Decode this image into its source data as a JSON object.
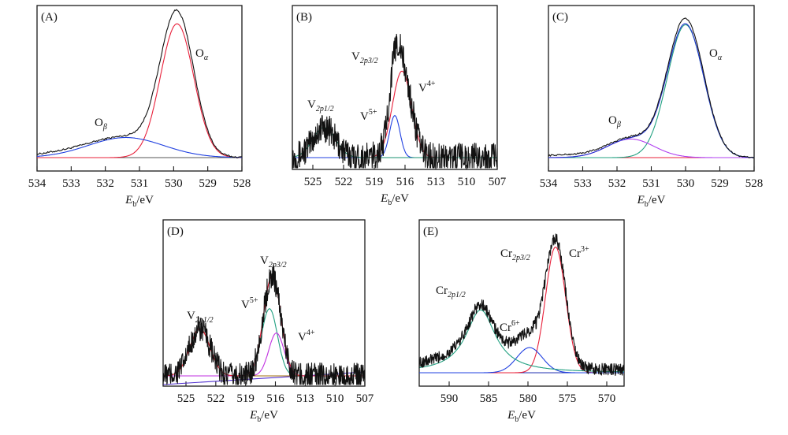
{
  "chart_data": [
    {
      "id": "A",
      "type": "line",
      "panel_label": "(A)",
      "xlabel_main": "E",
      "xlabel_sub": "b",
      "xlabel_unit": "/eV",
      "xlim": [
        534,
        528
      ],
      "x_reversed": true,
      "xticks": [
        534,
        533,
        532,
        531,
        530,
        529,
        528
      ],
      "ylabel": "",
      "yaxis_ticks": false,
      "annotations": [
        {
          "text": "O",
          "sub": "α",
          "near_x": 529.4,
          "label_for": "O-alpha component"
        },
        {
          "text": "O",
          "sub": "β",
          "near_x": 531.9,
          "label_for": "O-beta component"
        }
      ],
      "series": [
        {
          "name": "Measured spectrum",
          "color": "#111111",
          "kind": "envelope",
          "noise": "low"
        },
        {
          "name": "Oα fit",
          "color": "#e8203a",
          "kind": "gaussian",
          "center": 529.9,
          "fwhm": 1.15,
          "rel_height": 1.0
        },
        {
          "name": "Oβ fit",
          "color": "#2040e0",
          "kind": "gaussian",
          "center": 531.4,
          "fwhm": 2.6,
          "rel_height": 0.15
        },
        {
          "name": "Baseline",
          "color": "#555555",
          "kind": "baseline"
        }
      ]
    },
    {
      "id": "B",
      "type": "line",
      "panel_label": "(B)",
      "xlabel_main": "E",
      "xlabel_sub": "b",
      "xlabel_unit": "/eV",
      "xlim": [
        527,
        507
      ],
      "x_reversed": true,
      "xticks": [
        525,
        522,
        519,
        516,
        513,
        510,
        507
      ],
      "ylabel": "",
      "yaxis_ticks": false,
      "annotations": [
        {
          "text": "V",
          "sub": "2p3/2",
          "near_x": 517.5,
          "label_for": "V 2p3/2 peak"
        },
        {
          "text": "V",
          "sup": "4+",
          "near_x": 514.5,
          "label_for": "V4+ component"
        },
        {
          "text": "V",
          "sup": "5+",
          "near_x": 518.5,
          "label_for": "V5+ component"
        },
        {
          "text": "V",
          "sub": "2p1/2",
          "near_x": 524.0,
          "label_for": "V 2p1/2 peak"
        }
      ],
      "series": [
        {
          "name": "Measured spectrum",
          "color": "#111111",
          "kind": "envelope",
          "noise": "high"
        },
        {
          "name": "V4+ fit",
          "color": "#e8203a",
          "kind": "gaussian",
          "center": 516.3,
          "fwhm": 2.2,
          "rel_height": 0.72
        },
        {
          "name": "V5+ fit",
          "color": "#2040e0",
          "kind": "gaussian",
          "center": 517.0,
          "fwhm": 1.2,
          "rel_height": 0.35
        },
        {
          "name": "V 2p1/2 fit",
          "color": "#1a9070",
          "kind": "gaussian",
          "center": 523.9,
          "fwhm": 2.6,
          "rel_height": 0.25
        },
        {
          "name": "Baseline",
          "color": "#3030c0",
          "kind": "baseline"
        }
      ]
    },
    {
      "id": "C",
      "type": "line",
      "panel_label": "(C)",
      "xlabel_main": "E",
      "xlabel_sub": "b",
      "xlabel_unit": "/eV",
      "xlim": [
        534,
        528
      ],
      "x_reversed": true,
      "xticks": [
        534,
        533,
        532,
        531,
        530,
        529,
        528
      ],
      "ylabel": "",
      "yaxis_ticks": false,
      "annotations": [
        {
          "text": "O",
          "sub": "α",
          "near_x": 529.3,
          "label_for": "O-alpha component"
        },
        {
          "text": "O",
          "sub": "β",
          "near_x": 532.0,
          "label_for": "O-beta component"
        }
      ],
      "series": [
        {
          "name": "Measured spectrum",
          "color": "#111111",
          "kind": "envelope",
          "noise": "low"
        },
        {
          "name": "Envelope fit",
          "color": "#2030d0",
          "kind": "sum"
        },
        {
          "name": "Oα fit",
          "color": "#20a080",
          "kind": "gaussian",
          "center": 530.0,
          "fwhm": 1.25,
          "rel_height": 1.0
        },
        {
          "name": "Oβ fit",
          "color": "#b040f0",
          "kind": "gaussian",
          "center": 531.6,
          "fwhm": 1.6,
          "rel_height": 0.14
        },
        {
          "name": "Baseline",
          "color": "#e8203a",
          "kind": "baseline"
        }
      ]
    },
    {
      "id": "D",
      "type": "line",
      "panel_label": "(D)",
      "xlabel_main": "E",
      "xlabel_sub": "b",
      "xlabel_unit": "/eV",
      "xlim": [
        527.3,
        507
      ],
      "x_reversed": true,
      "xticks": [
        525,
        522,
        519,
        516,
        513,
        510,
        507
      ],
      "ylabel": "",
      "yaxis_ticks": false,
      "annotations": [
        {
          "text": "V",
          "sub": "2p3/2",
          "near_x": 516.5,
          "label_for": "V 2p3/2 peak"
        },
        {
          "text": "V",
          "sup": "5+",
          "near_x": 518.5,
          "label_for": "V5+ component"
        },
        {
          "text": "V",
          "sup": "4+",
          "near_x": 513.5,
          "label_for": "V4+ component"
        },
        {
          "text": "V",
          "sub": "2p1/2",
          "near_x": 523.8,
          "label_for": "V 2p1/2 peak"
        }
      ],
      "series": [
        {
          "name": "Measured spectrum",
          "color": "#111111",
          "kind": "envelope",
          "noise": "high"
        },
        {
          "name": "Envelope fit",
          "color": "#e8203a",
          "kind": "sum"
        },
        {
          "name": "V5+ fit",
          "color": "#20a080",
          "kind": "gaussian",
          "center": 516.6,
          "fwhm": 1.9,
          "rel_height": 0.47
        },
        {
          "name": "V4+ fit",
          "color": "#c030e0",
          "kind": "gaussian",
          "center": 515.9,
          "fwhm": 1.8,
          "rel_height": 0.3
        },
        {
          "name": "V 2p1/2 fit",
          "color": "#a07010",
          "kind": "gaussian",
          "center": 523.6,
          "fwhm": 2.4,
          "rel_height": 0.33
        },
        {
          "name": "Baseline",
          "color": "#5030d0",
          "kind": "baseline_sloped"
        }
      ]
    },
    {
      "id": "E",
      "type": "line",
      "panel_label": "(E)",
      "xlabel_main": "E",
      "xlabel_sub": "b",
      "xlabel_unit": "/eV",
      "xlim": [
        593.8,
        567.8
      ],
      "x_reversed": true,
      "xticks": [
        590,
        585,
        580,
        575,
        570
      ],
      "ylabel": "",
      "yaxis_ticks": false,
      "annotations": [
        {
          "text": "Cr",
          "sub": "2p3/2",
          "near_x": 579.0,
          "label_for": "Cr 2p3/2 peak"
        },
        {
          "text": "Cr",
          "sup": "3+",
          "near_x": 574.0,
          "label_for": "Cr3+ component"
        },
        {
          "text": "Cr",
          "sup": "6+",
          "near_x": 580.8,
          "label_for": "Cr6+ component"
        },
        {
          "text": "Cr",
          "sub": "2p1/2",
          "near_x": 587.5,
          "label_for": "Cr 2p1/2 peak"
        }
      ],
      "series": [
        {
          "name": "Measured spectrum",
          "color": "#111111",
          "kind": "envelope",
          "noise": "medium"
        },
        {
          "name": "Cr3+ fit",
          "color": "#e8203a",
          "kind": "gaussian",
          "center": 576.5,
          "fwhm": 3.0,
          "rel_height": 1.0
        },
        {
          "name": "Cr6+ fit",
          "color": "#2040e0",
          "kind": "gaussian",
          "center": 579.8,
          "fwhm": 3.8,
          "rel_height": 0.2
        },
        {
          "name": "Cr 2p1/2 fit",
          "color": "#20a080",
          "kind": "lorentz",
          "center": 586.0,
          "fwhm": 4.6,
          "rel_height": 0.5
        },
        {
          "name": "Baseline",
          "color": "#2030b0",
          "kind": "baseline"
        }
      ]
    }
  ]
}
